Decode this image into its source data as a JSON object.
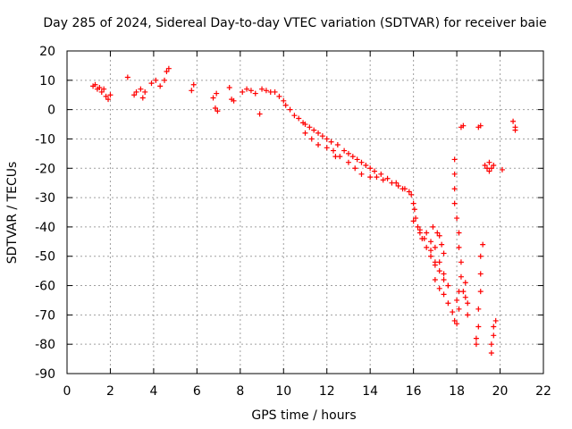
{
  "chart_data": {
    "type": "scatter",
    "title": "Day 285 of 2024, Sidereal Day-to-day VTEC variation (SDTVAR) for receiver baie",
    "xlabel": "GPS time / hours",
    "ylabel": "SDTVAR / TECUs",
    "xlim": [
      0,
      22
    ],
    "ylim": [
      -90,
      20
    ],
    "xticks": [
      0,
      2,
      4,
      6,
      8,
      10,
      12,
      14,
      16,
      18,
      20,
      22
    ],
    "yticks": [
      20,
      10,
      0,
      -10,
      -20,
      -30,
      -40,
      -50,
      -60,
      -70,
      -80,
      -90
    ],
    "grid": true,
    "marker": "+",
    "color": "#ff0000",
    "series": [
      {
        "name": "SDTVAR",
        "points": [
          [
            1.2,
            8
          ],
          [
            1.3,
            8.5
          ],
          [
            1.4,
            7
          ],
          [
            1.5,
            7.5
          ],
          [
            1.6,
            6
          ],
          [
            1.7,
            7
          ],
          [
            1.8,
            4.5
          ],
          [
            1.9,
            3.5
          ],
          [
            2.0,
            5
          ],
          [
            2.8,
            11
          ],
          [
            3.1,
            5
          ],
          [
            3.2,
            6
          ],
          [
            3.4,
            7
          ],
          [
            3.5,
            4
          ],
          [
            3.6,
            6
          ],
          [
            3.9,
            9
          ],
          [
            4.1,
            10
          ],
          [
            4.3,
            8
          ],
          [
            4.5,
            10
          ],
          [
            4.6,
            13
          ],
          [
            4.7,
            14
          ],
          [
            5.75,
            6.5
          ],
          [
            5.85,
            8.5
          ],
          [
            6.75,
            4
          ],
          [
            6.9,
            5.5
          ],
          [
            6.85,
            0.5
          ],
          [
            6.95,
            -0.5
          ],
          [
            7.5,
            7.5
          ],
          [
            7.6,
            3.5
          ],
          [
            7.7,
            3
          ],
          [
            8.1,
            6
          ],
          [
            8.3,
            7
          ],
          [
            8.5,
            6.5
          ],
          [
            8.7,
            5.5
          ],
          [
            8.9,
            -1.5
          ],
          [
            9.0,
            7
          ],
          [
            9.2,
            6.5
          ],
          [
            9.4,
            6
          ],
          [
            9.6,
            6
          ],
          [
            9.8,
            4.5
          ],
          [
            10.0,
            3
          ],
          [
            10.1,
            1.5
          ],
          [
            10.3,
            0
          ],
          [
            10.5,
            -2
          ],
          [
            10.7,
            -3
          ],
          [
            10.9,
            -4.5
          ],
          [
            11.0,
            -5
          ],
          [
            11.2,
            -6
          ],
          [
            11.4,
            -7
          ],
          [
            11.6,
            -8
          ],
          [
            11.8,
            -9
          ],
          [
            12.0,
            -10
          ],
          [
            11.0,
            -8
          ],
          [
            11.3,
            -10
          ],
          [
            11.6,
            -12
          ],
          [
            12.0,
            -13
          ],
          [
            12.4,
            -16
          ],
          [
            12.3,
            -14
          ],
          [
            12.6,
            -16
          ],
          [
            12.2,
            -11
          ],
          [
            12.5,
            -12
          ],
          [
            12.8,
            -14
          ],
          [
            13.0,
            -15
          ],
          [
            13.2,
            -16
          ],
          [
            13.4,
            -17
          ],
          [
            13.6,
            -18
          ],
          [
            13.8,
            -19
          ],
          [
            14.0,
            -20
          ],
          [
            13.0,
            -18
          ],
          [
            13.3,
            -20
          ],
          [
            13.6,
            -22
          ],
          [
            14.0,
            -23
          ],
          [
            14.3,
            -23
          ],
          [
            14.6,
            -24
          ],
          [
            15.0,
            -25
          ],
          [
            15.3,
            -26
          ],
          [
            15.5,
            -27
          ],
          [
            14.2,
            -21
          ],
          [
            14.5,
            -22
          ],
          [
            14.8,
            -23.5
          ],
          [
            15.2,
            -25
          ],
          [
            15.6,
            -27
          ],
          [
            15.8,
            -28
          ],
          [
            15.9,
            -29
          ],
          [
            16.0,
            -32
          ],
          [
            16.05,
            -34
          ],
          [
            16.1,
            -37
          ],
          [
            16.2,
            -40
          ],
          [
            16.3,
            -42
          ],
          [
            16.4,
            -44
          ],
          [
            16.6,
            -47
          ],
          [
            16.8,
            -50
          ],
          [
            17.0,
            -53
          ],
          [
            16.0,
            -38
          ],
          [
            16.3,
            -41
          ],
          [
            16.5,
            -44
          ],
          [
            16.8,
            -48
          ],
          [
            17.0,
            -52
          ],
          [
            17.2,
            -55
          ],
          [
            17.4,
            -58
          ],
          [
            17.6,
            -60
          ],
          [
            17.0,
            -58
          ],
          [
            17.2,
            -61
          ],
          [
            17.4,
            -63
          ],
          [
            17.6,
            -66
          ],
          [
            17.8,
            -69
          ],
          [
            17.9,
            -72
          ],
          [
            18.0,
            -73
          ],
          [
            16.9,
            -40
          ],
          [
            17.1,
            -42
          ],
          [
            17.2,
            -43
          ],
          [
            17.3,
            -46
          ],
          [
            17.4,
            -49
          ],
          [
            16.6,
            -42
          ],
          [
            16.8,
            -45
          ],
          [
            17.0,
            -47
          ],
          [
            17.2,
            -52
          ],
          [
            17.4,
            -56
          ],
          [
            17.6,
            -60
          ],
          [
            17.9,
            -17
          ],
          [
            17.9,
            -22
          ],
          [
            17.9,
            -27
          ],
          [
            17.9,
            -32
          ],
          [
            18.0,
            -37
          ],
          [
            18.1,
            -42
          ],
          [
            18.1,
            -47
          ],
          [
            18.2,
            -52
          ],
          [
            18.2,
            -57
          ],
          [
            18.1,
            -62
          ],
          [
            18.0,
            -65
          ],
          [
            18.2,
            -6
          ],
          [
            18.3,
            -5.5
          ],
          [
            18.4,
            -59
          ],
          [
            18.4,
            -64
          ],
          [
            18.5,
            -66
          ],
          [
            18.5,
            -70
          ],
          [
            18.3,
            -62
          ],
          [
            18.1,
            -68
          ],
          [
            18.9,
            -80
          ],
          [
            18.9,
            -78
          ],
          [
            19.0,
            -74
          ],
          [
            19.0,
            -68
          ],
          [
            19.1,
            -62
          ],
          [
            19.1,
            -56
          ],
          [
            19.1,
            -50
          ],
          [
            19.2,
            -46
          ],
          [
            19.0,
            -6
          ],
          [
            19.1,
            -5.5
          ],
          [
            19.3,
            -19
          ],
          [
            19.4,
            -20
          ],
          [
            19.5,
            -21
          ],
          [
            19.6,
            -20
          ],
          [
            19.7,
            -19
          ],
          [
            19.5,
            -18
          ],
          [
            19.6,
            -83
          ],
          [
            19.6,
            -80
          ],
          [
            19.7,
            -77
          ],
          [
            19.7,
            -74
          ],
          [
            19.8,
            -72
          ],
          [
            20.1,
            -20.5
          ],
          [
            20.6,
            -4
          ],
          [
            20.7,
            -6
          ],
          [
            20.7,
            -7
          ]
        ]
      }
    ]
  }
}
